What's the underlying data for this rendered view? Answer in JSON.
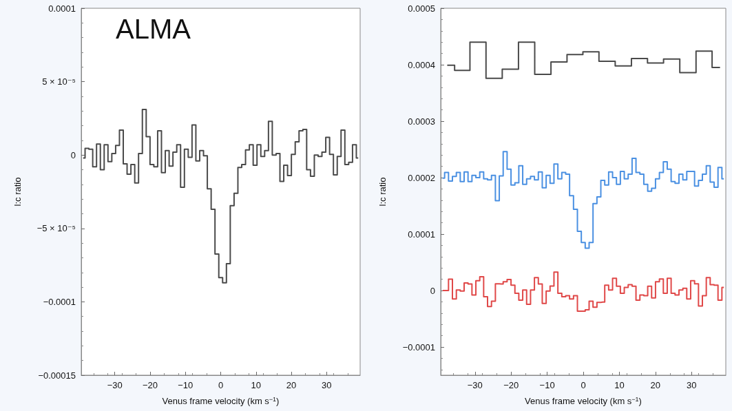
{
  "chart_data": [
    {
      "type": "step",
      "annotations": [
        "ALMA"
      ],
      "xlabel": "Venus frame velocity (km s$^{−1}$)",
      "ylabel": "l:c ratio",
      "x": [
        -38.96,
        -37.88,
        -36.8,
        -35.71,
        -34.63,
        -33.55,
        -32.47,
        -31.39,
        -30.3,
        -29.22,
        -28.14,
        -27.06,
        -25.98,
        -24.89,
        -23.81,
        -22.73,
        -21.65,
        -20.56,
        -19.48,
        -18.4,
        -17.32,
        -16.24,
        -15.15,
        -14.07,
        -12.99,
        -11.91,
        -10.82,
        -9.74,
        -8.66,
        -7.58,
        -6.49,
        -5.41,
        -4.33,
        -3.25,
        -2.16,
        -1.08,
        0,
        1.08,
        2.16,
        3.25,
        4.33,
        5.41,
        6.49,
        7.58,
        8.66,
        9.74,
        10.82,
        11.91,
        12.99,
        14.07,
        15.15,
        16.24,
        17.32,
        18.4,
        19.48,
        20.56,
        21.65,
        22.73,
        23.81,
        24.89,
        25.98,
        27.06,
        28.14,
        29.22,
        30.3,
        31.39,
        32.47,
        33.55,
        34.63,
        35.71,
        36.8,
        37.88,
        38.96
      ],
      "series": [
        {
          "color": "#4a4a4a",
          "values": [
            -2e-06,
            4.5e-06,
            4e-06,
            -8e-06,
            7.5e-06,
            -1e-05,
            7e-06,
            -4.5e-06,
            1e-06,
            6.5e-06,
            1.7e-05,
            -6e-06,
            -1.3e-05,
            -6.5e-06,
            -1.9e-05,
            1e-06,
            3.1e-05,
            1.25e-05,
            -6.5e-06,
            -8e-06,
            1.65e-05,
            -1.2e-05,
            3e-06,
            -7.5e-06,
            2e-06,
            7e-06,
            -2.2e-05,
            4e-06,
            -1.5e-06,
            2.05e-05,
            -4e-06,
            3e-06,
            -5e-07,
            -2.3e-05,
            -3.7e-05,
            -6.75e-05,
            -8.35e-05,
            -8.7e-05,
            -7.4e-05,
            -3.45e-05,
            -2.6e-05,
            -8.5e-06,
            -6.5e-06,
            3.5e-06,
            7e-06,
            -7e-06,
            7e-06,
            -1e-06,
            3e-06,
            2.3e-05,
            0,
            1e-06,
            -1.8e-05,
            -7e-06,
            -1.4e-05,
            5e-07,
            9e-06,
            1.65e-05,
            1.75e-05,
            -1e-05,
            -1.45e-05,
            0,
            -1e-06,
            2e-06,
            1.2e-05,
            5e-07,
            -1.35e-05,
            -1e-06,
            1.7e-05,
            -6.5e-06,
            -5e-06,
            7e-06,
            -2e-06
          ]
        }
      ],
      "xlim": [
        -39.5,
        39.5
      ],
      "xticks": [
        {
          "value": -30,
          "label": "−30"
        },
        {
          "value": -20,
          "label": "−20"
        },
        {
          "value": -10,
          "label": "−10"
        },
        0,
        10,
        20,
        30
      ],
      "ylim": [
        -0.00015,
        0.0001
      ],
      "yticks": [
        {
          "value": -0.00015,
          "label": "−0.00015"
        },
        {
          "value": -0.0001,
          "label": "−0.0001"
        },
        {
          "value": -5e-05,
          "label": "−5 × 10⁻⁵"
        },
        0,
        {
          "value": 5e-05,
          "label": "5 × 10⁻⁵"
        },
        0.0001
      ],
      "grid": false
    },
    {
      "type": "step",
      "xlabel": "Venus frame velocity (km s$^{−1}$)",
      "ylabel": "l:c ratio",
      "x": [
        -38.96,
        -37.88,
        -36.8,
        -35.71,
        -34.63,
        -33.55,
        -32.47,
        -31.39,
        -30.3,
        -29.22,
        -28.14,
        -27.06,
        -25.98,
        -24.89,
        -23.81,
        -22.73,
        -21.65,
        -20.56,
        -19.48,
        -18.4,
        -17.32,
        -16.24,
        -15.15,
        -14.07,
        -12.99,
        -11.91,
        -10.82,
        -9.74,
        -8.66,
        -7.58,
        -6.49,
        -5.41,
        -4.33,
        -3.25,
        -2.16,
        -1.08,
        0,
        1.08,
        2.16,
        3.25,
        4.33,
        5.41,
        6.49,
        7.58,
        8.66,
        9.74,
        10.82,
        11.91,
        12.99,
        14.07,
        15.15,
        16.24,
        17.32,
        18.4,
        19.48,
        20.56,
        21.65,
        22.73,
        23.81,
        24.89,
        25.98,
        27.06,
        28.14,
        29.22,
        30.3,
        31.39,
        32.47,
        33.55,
        34.63,
        35.71,
        36.8,
        37.88,
        38.96
      ],
      "series": [
        {
          "color": "#4a4a4a",
          "x": [
            -37.7,
            -33.6,
            -29.2,
            -24.7,
            -20.2,
            -15.7,
            -11.2,
            -6.7,
            -2.3,
            2.1,
            6.6,
            11.1,
            15.6,
            20.0,
            24.5,
            29.0,
            33.5,
            37.9
          ],
          "values": [
            0.000399,
            0.00039,
            0.00044,
            0.000376,
            0.000392,
            0.00044,
            0.000383,
            0.000405,
            0.000418,
            0.000423,
            0.000406,
            0.000398,
            0.000411,
            0.000403,
            0.00041,
            0.000386,
            0.000424,
            0.000395
          ]
        },
        {
          "color": "#4a90e2",
          "values": [
            0.000199,
            0.000209,
            0.000194,
            0.000202,
            0.000209,
            0.000193,
            0.00021,
            0.000193,
            0.000204,
            0.0002,
            0.00021,
            0.000198,
            0.000196,
            0.000204,
            0.000159,
            0.000203,
            0.000246,
            0.000215,
            0.000187,
            0.000191,
            0.000221,
            0.000188,
            0.000198,
            0.000202,
            0.000196,
            0.00021,
            0.000182,
            0.000204,
            0.00019,
            0.000224,
            0.000198,
            0.000209,
            0.000206,
            0.000168,
            0.000144,
            0.000105,
            8.5e-05,
            7.5e-05,
            8.5e-05,
            0.000154,
            0.000166,
            0.000195,
            0.000187,
            0.00021,
            0.0002,
            0.000188,
            0.000211,
            0.000198,
            0.000206,
            0.000234,
            0.000209,
            0.000206,
            0.000188,
            0.000176,
            0.000181,
            0.000198,
            0.000209,
            0.000228,
            0.000215,
            0.000193,
            0.00019,
            0.000206,
            0.000196,
            0.000211,
            0.000211,
            0.000185,
            0.000195,
            0.000206,
            0.000221,
            0.000192,
            0.000183,
            0.000218,
            0.000198
          ]
        },
        {
          "color": "#e04848",
          "values": [
            0,
            0,
            2e-05,
            -1.5e-05,
            1e-06,
            -1e-06,
            1.35e-05,
            1.15e-05,
            -8e-06,
            1.75e-05,
            2.45e-05,
            -1.1e-05,
            -2.85e-05,
            -1.9e-05,
            1.2e-05,
            1.15e-05,
            1.55e-05,
            1.95e-05,
            9.5e-06,
            -5e-06,
            -1.7e-05,
            1e-06,
            -2.45e-05,
            1e-06,
            2.3e-05,
            1.15e-05,
            -2.3e-05,
            -1e-06,
            8e-06,
            3.25e-05,
            -5e-06,
            -1.1e-05,
            -9e-06,
            -1.5e-05,
            -9e-06,
            -3.65e-05,
            -3.65e-05,
            -3.4e-05,
            -1.9e-05,
            -2.95e-05,
            -2.1e-05,
            -2.05e-05,
            9.5e-06,
            1e-06,
            2.15e-05,
            7.5e-06,
            -5e-06,
            5.5e-06,
            1.05e-05,
            7.5e-06,
            -1.7e-05,
            -8e-06,
            -9e-06,
            7.5e-06,
            -1.3e-05,
            1.55e-05,
            2.05e-05,
            -5e-06,
            2.15e-05,
            -5e-06,
            -8e-06,
            1e-06,
            4e-06,
            -1.5e-05,
            1.75e-05,
            1.2e-05,
            -2.75e-05,
            -9e-06,
            2.3e-05,
            1.05e-05,
            9.5e-06,
            -1.7e-05,
            5.5e-06
          ]
        }
      ],
      "xlim": [
        -39.5,
        39.5
      ],
      "xticks": [
        {
          "value": -30,
          "label": "−30"
        },
        {
          "value": -20,
          "label": "−20"
        },
        {
          "value": -10,
          "label": "−10"
        },
        0,
        10,
        20,
        30
      ],
      "ylim": [
        -0.00015,
        0.0005
      ],
      "yticks": [
        {
          "value": -0.0001,
          "label": "−0.0001"
        },
        0,
        0.0001,
        0.0002,
        0.0003,
        0.0004,
        0.0005
      ],
      "grid": false
    }
  ]
}
